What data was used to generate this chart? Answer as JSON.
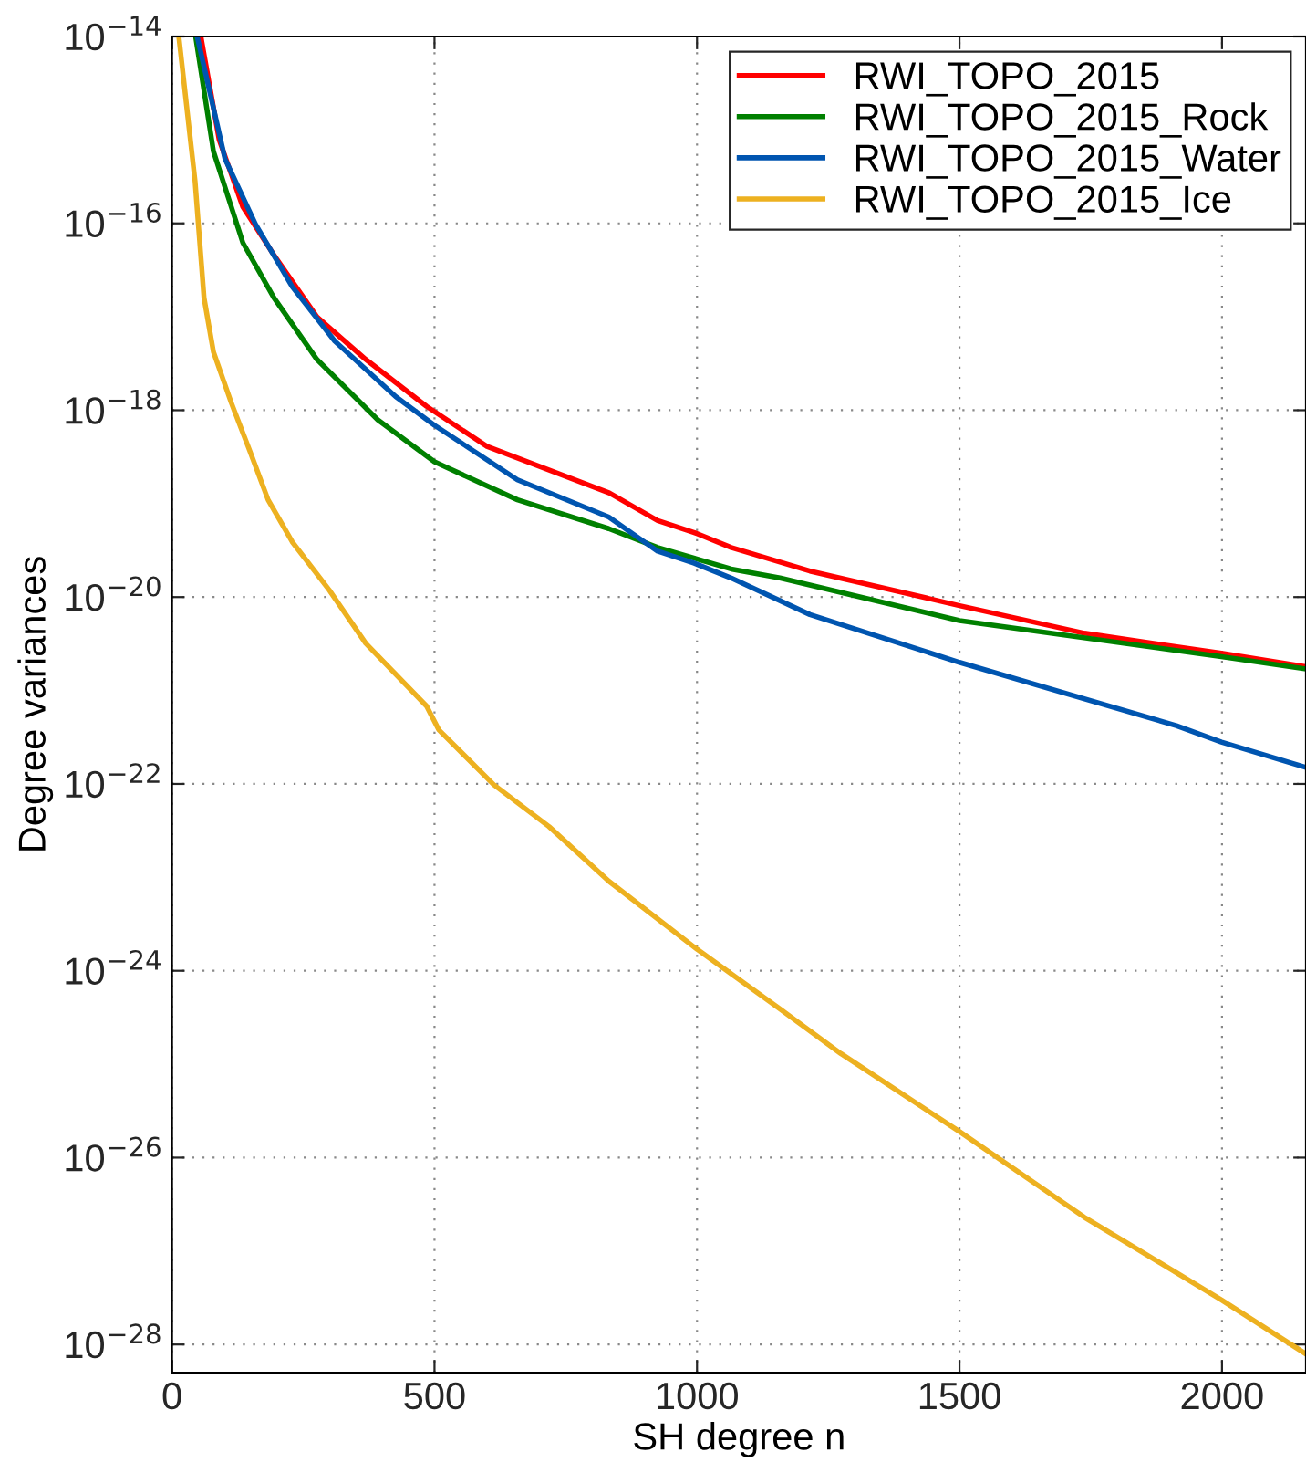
{
  "chart_data": {
    "type": "line",
    "xlabel": "SH degree n",
    "ylabel": "Degree variances",
    "log": "y",
    "grid": true,
    "legend": "top right",
    "line_style": "solid",
    "marker": "none",
    "xlim": [
      0,
      2160
    ],
    "xticks": [
      0,
      500,
      1000,
      1500,
      2000
    ],
    "ylim": [
      5e-29,
      1e-14
    ],
    "yticks": [
      {
        "value": 1e-14,
        "label": "10$^{−14}$"
      },
      {
        "value": 1e-16,
        "label": "10$^{−16}$"
      },
      {
        "value": 1e-18,
        "label": "10$^{−18}$"
      },
      {
        "value": 1e-20,
        "label": "10$^{−20}$"
      },
      {
        "value": 1e-22,
        "label": "10$^{−22}$"
      },
      {
        "value": 1e-24,
        "label": "10$^{−24}$"
      },
      {
        "value": 1e-26,
        "label": "10$^{−26}$"
      },
      {
        "value": 1e-28,
        "label": "10$^{−28}$"
      }
    ],
    "series": [
      {
        "name": "RWI_TOPO_2015",
        "color": "#ff0000",
        "x": [
          55,
          90,
          135,
          194,
          276,
          369,
          485,
          600,
          833,
          925,
          995,
          1065,
          1215,
          1500,
          1738,
          1999,
          2160
        ],
        "values": [
          1e-14,
          7.8e-16,
          1.5e-16,
          4.6e-17,
          1e-17,
          3.5e-18,
          1.1e-18,
          4.1e-19,
          1.3e-19,
          6.6e-20,
          4.9e-20,
          3.4e-20,
          1.9e-20,
          8.1e-21,
          4.1e-21,
          2.5e-21,
          1.8e-21
        ]
      },
      {
        "name": "RWI_TOPO_2015_Rock",
        "color": "#008000",
        "x": [
          45,
          79,
          135,
          194,
          276,
          392,
          500,
          658,
          832,
          925,
          1065,
          1158,
          1500,
          1999,
          2160
        ],
        "values": [
          1e-14,
          5.9e-16,
          6.2e-17,
          1.6e-17,
          3.5e-18,
          7.9e-19,
          2.8e-19,
          1.1e-19,
          5.4e-20,
          3.4e-20,
          2e-20,
          1.6e-20,
          5.6e-21,
          2.3e-21,
          1.7e-21
        ]
      },
      {
        "name": "RWI_TOPO_2015_Water",
        "color": "#0055b0",
        "x": [
          48,
          101,
          159,
          229,
          310,
          426,
          500,
          658,
          832,
          925,
          995,
          1065,
          1215,
          1500,
          1913,
          1999,
          2160
        ],
        "values": [
          1e-14,
          4.9e-16,
          9.8e-17,
          2.1e-17,
          5.5e-18,
          1.4e-18,
          6.9e-19,
          1.8e-19,
          7.2e-20,
          3.1e-20,
          2.3e-20,
          1.6e-20,
          6.5e-21,
          2e-21,
          4.2e-22,
          2.8e-22,
          1.5e-22
        ]
      },
      {
        "name": "RWI_TOPO_2015_Ice",
        "color": "#edb120",
        "x": [
          13,
          44,
          61,
          79,
          113,
          148,
          183,
          229,
          299,
          369,
          485,
          508,
          613,
          718,
          832,
          1000,
          1158,
          1274,
          1500,
          1738,
          1999,
          2160
        ],
        "values": [
          1e-14,
          2.8e-16,
          1.6e-17,
          4.2e-18,
          1.2e-18,
          3.7e-19,
          1.1e-19,
          3.9e-20,
          1.2e-20,
          3.2e-21,
          6.8e-22,
          3.8e-22,
          9.8e-23,
          3.5e-23,
          9.1e-24,
          1.7e-24,
          3.9e-25,
          1.3e-25,
          1.9e-26,
          2.3e-27,
          3e-28,
          7.9e-29
        ]
      }
    ]
  }
}
